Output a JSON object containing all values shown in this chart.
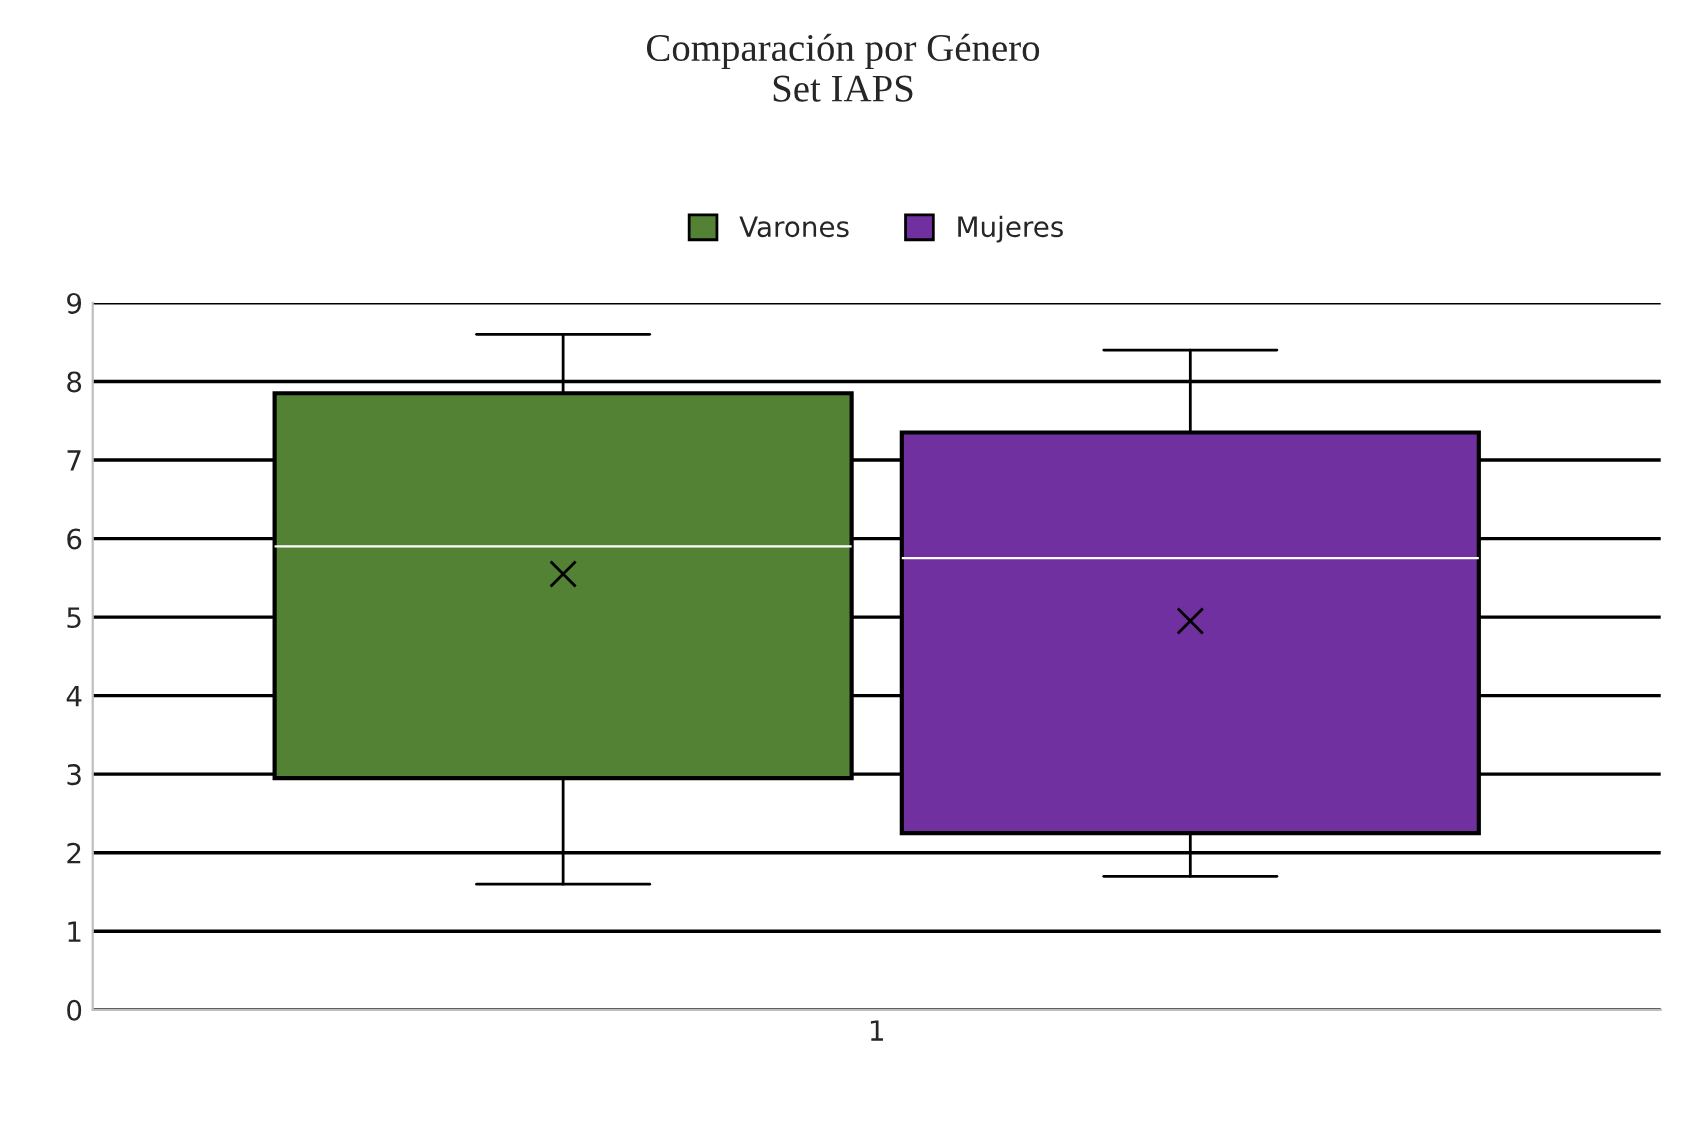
{
  "chart_data": {
    "type": "box",
    "title": "Comparación por Género\nSet IAPS",
    "categories": [
      "1"
    ],
    "series": [
      {
        "name": "Varones",
        "color": "#548235",
        "boxes": [
          {
            "low": 1.6,
            "q1": 2.95,
            "median": 5.9,
            "q3": 7.85,
            "high": 8.6,
            "mean": 5.55
          }
        ]
      },
      {
        "name": "Mujeres",
        "color": "#7030a0",
        "boxes": [
          {
            "low": 1.7,
            "q1": 2.25,
            "median": 5.75,
            "q3": 7.35,
            "high": 8.4,
            "mean": 4.95
          }
        ]
      }
    ],
    "ylim": [
      0,
      9
    ],
    "yticks": [
      0,
      1,
      2,
      3,
      4,
      5,
      6,
      7,
      8,
      9
    ],
    "grid": "y",
    "legend": "top"
  }
}
